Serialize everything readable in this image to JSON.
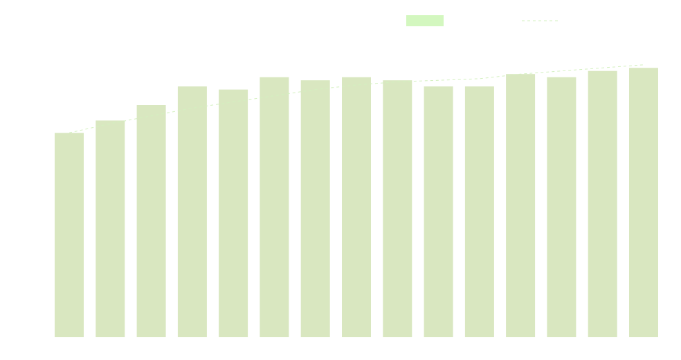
{
  "chart_data": {
    "type": "bar",
    "categories": [
      "",
      "",
      "",
      "",
      "",
      "",
      "",
      "",
      "",
      "",
      "",
      "",
      "",
      "",
      ""
    ],
    "series": [
      {
        "kind": "bar",
        "values": [
          66,
          70,
          75,
          81,
          80,
          84,
          83,
          84,
          83,
          81,
          81,
          85,
          84,
          86,
          87
        ],
        "color": "#d9e7c0"
      },
      {
        "kind": "line",
        "style": "dashed",
        "values": [
          66,
          69,
          71.5,
          74,
          76,
          78,
          80,
          81.5,
          82.5,
          83,
          83.5,
          85,
          86,
          87,
          88
        ],
        "color": "#d3f0bf"
      }
    ],
    "legend": {
      "placement": "top-right",
      "entries": [
        {
          "label": "",
          "swatch": "box",
          "color": "#d3f7bf"
        },
        {
          "label": "",
          "swatch": "dashed-line",
          "color": "#d3f0bf"
        }
      ]
    },
    "ylim": [
      0,
      100
    ],
    "grid": false,
    "axes_visible": false,
    "title": "",
    "xlabel": "",
    "ylabel": ""
  }
}
